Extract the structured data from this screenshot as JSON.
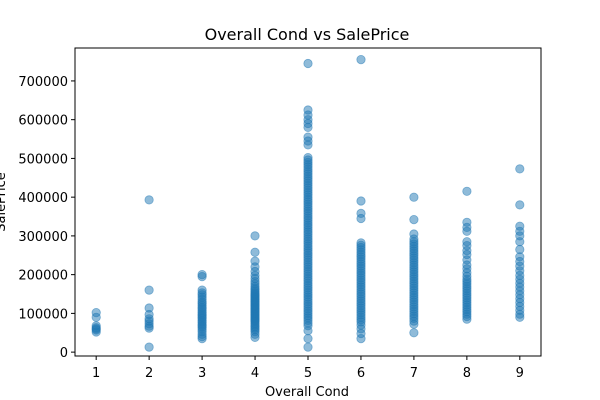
{
  "chart_data": {
    "type": "scatter",
    "title": "Overall Cond vs SalePrice",
    "xlabel": "Overall Cond",
    "ylabel": "SalePrice",
    "xlim": [
      0.6,
      9.4
    ],
    "ylim": [
      -10000,
      785000
    ],
    "xticks": [
      1,
      2,
      3,
      4,
      5,
      6,
      7,
      8,
      9
    ],
    "yticks": [
      0,
      100000,
      200000,
      300000,
      400000,
      500000,
      600000,
      700000
    ],
    "grid": false,
    "color": "#1f77b4",
    "alpha": 0.5,
    "points_by_x": [
      {
        "x": 1,
        "y": [
          52000,
          57000,
          60000,
          63000,
          68000,
          90000,
          102000
        ]
      },
      {
        "x": 2,
        "y": [
          13000,
          62000,
          67000,
          73000,
          80000,
          86000,
          97000,
          114000,
          160000,
          393000
        ]
      },
      {
        "x": 3,
        "y": [
          35000,
          40000,
          46000,
          53000,
          59000,
          64000,
          68000,
          72000,
          77000,
          81000,
          86000,
          90000,
          94000,
          98000,
          102000,
          107000,
          112000,
          116000,
          121000,
          126000,
          130000,
          136000,
          142000,
          148000,
          153000,
          160000,
          195000,
          200000
        ]
      },
      {
        "x": 4,
        "y": [
          38000,
          46000,
          53000,
          58000,
          62000,
          66000,
          70000,
          74000,
          78000,
          81000,
          84000,
          87000,
          90000,
          93000,
          96000,
          99000,
          102000,
          105000,
          108000,
          111000,
          114000,
          117000,
          120000,
          123000,
          126000,
          129000,
          132000,
          135000,
          138000,
          141000,
          144000,
          147000,
          150000,
          153000,
          157000,
          161000,
          165000,
          170000,
          176000,
          182000,
          190000,
          198000,
          208000,
          220000,
          235000,
          258000,
          300000
        ]
      },
      {
        "x": 5,
        "y": [
          13000,
          35000,
          55000,
          68000,
          75000,
          82000,
          88000,
          94000,
          100000,
          106000,
          112000,
          118000,
          124000,
          130000,
          136000,
          142000,
          148000,
          154000,
          160000,
          166000,
          172000,
          178000,
          184000,
          190000,
          196000,
          202000,
          208000,
          214000,
          220000,
          226000,
          232000,
          238000,
          244000,
          250000,
          256000,
          262000,
          268000,
          274000,
          280000,
          286000,
          292000,
          298000,
          304000,
          310000,
          316000,
          322000,
          328000,
          334000,
          340000,
          346000,
          352000,
          358000,
          364000,
          370000,
          376000,
          382000,
          388000,
          394000,
          400000,
          406000,
          412000,
          418000,
          424000,
          430000,
          436000,
          442000,
          448000,
          454000,
          460000,
          466000,
          472000,
          478000,
          484000,
          490000,
          496000,
          502000,
          535000,
          545000,
          555000,
          580000,
          590000,
          600000,
          612000,
          625000,
          745000
        ]
      },
      {
        "x": 6,
        "y": [
          35000,
          48000,
          60000,
          70000,
          78000,
          84000,
          90000,
          96000,
          102000,
          108000,
          114000,
          120000,
          126000,
          132000,
          138000,
          144000,
          150000,
          156000,
          162000,
          168000,
          174000,
          180000,
          186000,
          192000,
          198000,
          204000,
          210000,
          216000,
          222000,
          228000,
          234000,
          240000,
          246000,
          252000,
          258000,
          264000,
          270000,
          276000,
          282000,
          345000,
          358000,
          390000,
          755000
        ]
      },
      {
        "x": 7,
        "y": [
          50000,
          72000,
          80000,
          87000,
          93000,
          99000,
          105000,
          111000,
          117000,
          123000,
          129000,
          135000,
          141000,
          147000,
          153000,
          159000,
          165000,
          171000,
          177000,
          183000,
          189000,
          195000,
          201000,
          207000,
          213000,
          219000,
          225000,
          231000,
          237000,
          243000,
          249000,
          255000,
          261000,
          267000,
          273000,
          279000,
          285000,
          292000,
          305000,
          342000,
          400000
        ]
      },
      {
        "x": 8,
        "y": [
          85000,
          92000,
          98000,
          104000,
          110000,
          116000,
          122000,
          128000,
          134000,
          140000,
          146000,
          152000,
          158000,
          164000,
          170000,
          176000,
          182000,
          188000,
          196000,
          205000,
          215000,
          225000,
          238000,
          252000,
          262000,
          275000,
          285000,
          312000,
          322000,
          335000,
          415000
        ]
      },
      {
        "x": 9,
        "y": [
          90000,
          98000,
          108000,
          118000,
          128000,
          138000,
          148000,
          158000,
          168000,
          178000,
          188000,
          198000,
          210000,
          222000,
          234000,
          246000,
          265000,
          285000,
          300000,
          312000,
          325000,
          380000,
          473000
        ]
      }
    ]
  }
}
